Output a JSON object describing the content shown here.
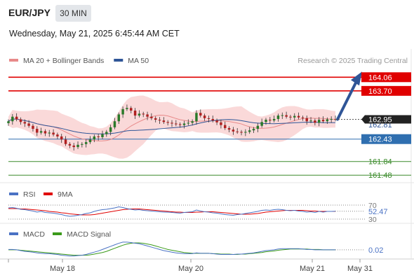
{
  "header": {
    "symbol": "EUR/JPY",
    "timeframe": "30 MIN",
    "datetime": "Wednesday, May 21, 2025 6:45:44 AM CET"
  },
  "chart_data": [
    {
      "type": "candlestick",
      "legend": [
        {
          "name": "MA 20 + Bollinger Bands",
          "color": "#e88a8a"
        },
        {
          "name": "MA 50",
          "color": "#2f5597"
        }
      ],
      "credit": "Research © 2025 Trading Central",
      "ylim": [
        161.3,
        164.25
      ],
      "last_price": "162.95",
      "levels": [
        {
          "value": 164.06,
          "label": "164.06",
          "color": "#e00000",
          "kind": "resistance"
        },
        {
          "value": 163.7,
          "label": "163.70",
          "color": "#e00000",
          "kind": "resistance"
        },
        {
          "value": 162.81,
          "label": "162.81",
          "color": "#2f5597",
          "kind": "ma50"
        },
        {
          "value": 162.43,
          "label": "162.43",
          "color": "#2f6fb0",
          "kind": "pivot"
        },
        {
          "value": 161.84,
          "label": "161.84",
          "color": "#3a8a2a",
          "kind": "support"
        },
        {
          "value": 161.48,
          "label": "161.48",
          "color": "#3a8a2a",
          "kind": "support"
        }
      ],
      "close": [
        162.9,
        163.02,
        162.95,
        162.88,
        162.84,
        162.78,
        162.7,
        162.6,
        162.64,
        162.58,
        162.6,
        162.55,
        162.5,
        162.42,
        162.3,
        162.26,
        162.22,
        162.28,
        162.3,
        162.35,
        162.42,
        162.5,
        162.48,
        162.56,
        162.62,
        162.74,
        162.9,
        163.08,
        163.22,
        163.25,
        163.18,
        163.05,
        163.1,
        163.08,
        163.02,
        162.98,
        162.94,
        162.92,
        162.88,
        162.86,
        162.84,
        162.82,
        162.8,
        162.84,
        162.86,
        162.9,
        163.12,
        163.05,
        162.98,
        162.96,
        162.92,
        162.87,
        162.8,
        162.72,
        162.68,
        162.63,
        162.62,
        162.6,
        162.62,
        162.66,
        162.7,
        162.78,
        162.88,
        162.94,
        162.92,
        162.96,
        163.05,
        163.06,
        163.02,
        163.0,
        163.04,
        163.0,
        162.98,
        162.9,
        162.92,
        162.86,
        162.94,
        162.9,
        162.95,
        162.96,
        162.95
      ],
      "projection": {
        "from": 162.95,
        "to": 164.06
      },
      "x_ticks": [
        "May 18",
        "May 20",
        "May 21",
        "May 31"
      ]
    },
    {
      "type": "line",
      "name": "RSI",
      "series": [
        {
          "name": "RSI",
          "color": "#4a72c4"
        },
        {
          "name": "9MA",
          "color": "#e00000"
        }
      ],
      "levels": [
        {
          "value": 70,
          "label": "70"
        },
        {
          "value": 30,
          "label": "30"
        }
      ],
      "last_value": "52.47",
      "rsi": [
        62,
        63,
        61,
        58,
        57,
        55,
        53,
        50,
        52,
        49,
        48,
        47,
        45,
        43,
        40,
        38,
        39,
        41,
        43,
        46,
        48,
        52,
        55,
        57,
        58,
        60,
        62,
        65,
        63,
        60,
        58,
        56,
        57,
        55,
        54,
        53,
        52,
        51,
        50,
        50,
        49,
        48,
        47,
        49,
        50,
        51,
        56,
        53,
        51,
        50,
        48,
        47,
        45,
        43,
        42,
        41,
        43,
        44,
        46,
        48,
        50,
        52,
        55,
        56,
        55,
        57,
        58,
        57,
        55,
        54,
        55,
        53,
        52,
        50,
        51,
        49,
        52,
        50,
        52,
        52,
        52.47
      ],
      "ma9": [
        60,
        60,
        60,
        59,
        59,
        58,
        57,
        56,
        55,
        54,
        52,
        51,
        50,
        48,
        47,
        45,
        44,
        43,
        42,
        42,
        42,
        43,
        45,
        47,
        49,
        51,
        53,
        55,
        57,
        58,
        59,
        59,
        59,
        58,
        57,
        56,
        55,
        54,
        53,
        52,
        51,
        50,
        50,
        49,
        49,
        49,
        50,
        50,
        51,
        51,
        51,
        50,
        49,
        48,
        47,
        46,
        45,
        44,
        44,
        44,
        45,
        46,
        48,
        50,
        51,
        52,
        53,
        54,
        55,
        55,
        55,
        55,
        55,
        54,
        53,
        53,
        52,
        52,
        52,
        52,
        52
      ]
    },
    {
      "type": "line",
      "name": "MACD",
      "series": [
        {
          "name": "MACD",
          "color": "#4a72c4"
        },
        {
          "name": "MACD Signal",
          "color": "#3a9a1a"
        }
      ],
      "last_value": "0.02",
      "macd": [
        0.03,
        0.03,
        0.02,
        0.0,
        -0.02,
        -0.03,
        -0.04,
        -0.06,
        -0.07,
        -0.08,
        -0.08,
        -0.09,
        -0.1,
        -0.12,
        -0.13,
        -0.14,
        -0.14,
        -0.13,
        -0.12,
        -0.1,
        -0.07,
        -0.04,
        -0.01,
        0.03,
        0.07,
        0.11,
        0.15,
        0.19,
        0.22,
        0.22,
        0.21,
        0.19,
        0.18,
        0.15,
        0.12,
        0.09,
        0.06,
        0.03,
        0.0,
        -0.02,
        -0.04,
        -0.06,
        -0.07,
        -0.08,
        -0.08,
        -0.08,
        -0.06,
        -0.07,
        -0.07,
        -0.07,
        -0.08,
        -0.09,
        -0.1,
        -0.1,
        -0.1,
        -0.1,
        -0.09,
        -0.09,
        -0.08,
        -0.07,
        -0.06,
        -0.04,
        -0.02,
        0.0,
        0.01,
        0.02,
        0.04,
        0.05,
        0.05,
        0.05,
        0.05,
        0.05,
        0.04,
        0.03,
        0.03,
        0.02,
        0.02,
        0.02,
        0.02,
        0.02,
        0.02
      ],
      "signal": [
        0.02,
        0.02,
        0.02,
        0.01,
        0.0,
        -0.01,
        -0.02,
        -0.03,
        -0.04,
        -0.05,
        -0.06,
        -0.07,
        -0.08,
        -0.09,
        -0.1,
        -0.11,
        -0.12,
        -0.12,
        -0.12,
        -0.12,
        -0.11,
        -0.09,
        -0.07,
        -0.05,
        -0.02,
        0.02,
        0.06,
        0.1,
        0.14,
        0.17,
        0.19,
        0.2,
        0.2,
        0.19,
        0.17,
        0.15,
        0.12,
        0.09,
        0.06,
        0.03,
        0.01,
        -0.01,
        -0.03,
        -0.05,
        -0.06,
        -0.07,
        -0.07,
        -0.07,
        -0.07,
        -0.07,
        -0.08,
        -0.08,
        -0.09,
        -0.09,
        -0.09,
        -0.1,
        -0.1,
        -0.09,
        -0.09,
        -0.08,
        -0.07,
        -0.06,
        -0.05,
        -0.03,
        -0.02,
        -0.01,
        0.01,
        0.02,
        0.03,
        0.04,
        0.04,
        0.04,
        0.04,
        0.04,
        0.03,
        0.03,
        0.03,
        0.02,
        0.02,
        0.02,
        0.02
      ]
    }
  ]
}
